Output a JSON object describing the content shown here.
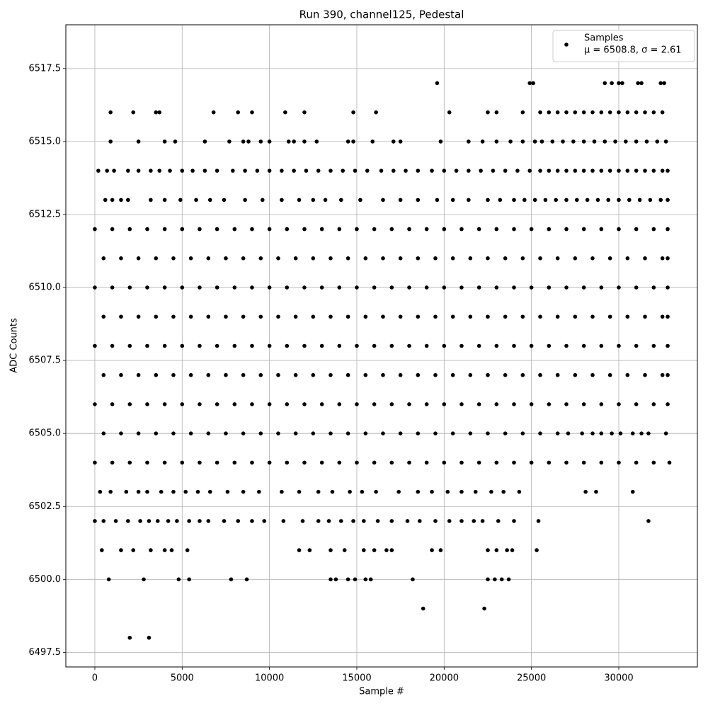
{
  "chart_data": {
    "type": "scatter",
    "title": "Run 390, channel125, Pedestal",
    "x_label": "Sample #",
    "y_label": "ADC Counts",
    "xlim": [
      -1660,
      34500
    ],
    "ylim": [
      6497.0,
      6519.0
    ],
    "xticks": [
      0,
      5000,
      10000,
      15000,
      20000,
      25000,
      30000
    ],
    "yticks": [
      6497.5,
      {
        "value": 6500.0,
        "label": "6500.0"
      },
      6502.5,
      {
        "value": 6505.0,
        "label": "6505.0"
      },
      6507.5,
      {
        "value": 6510.0,
        "label": "6510.0"
      },
      6512.5,
      {
        "value": 6515.0,
        "label": "6515.0"
      },
      6517.5
    ],
    "grid": true,
    "legend_position": "upper right",
    "legend_note": "μ = 6508.8, σ = 2.61",
    "series": [
      {
        "name": "Samples",
        "color": "#000000",
        "levels": [
          {
            "y": 6498,
            "x": [
              2000,
              3100
            ]
          },
          {
            "y": 6499,
            "x": [
              18800,
              22300
            ]
          },
          {
            "y": 6500,
            "x": [
              800,
              2800,
              4800,
              5400,
              7800,
              8700,
              13500,
              13800,
              14500,
              14900,
              15500,
              15800,
              18200,
              22500,
              22900,
              23300,
              23700
            ]
          },
          {
            "y": 6501,
            "x": [
              400,
              1500,
              2200,
              3200,
              4000,
              4400,
              5300,
              11700,
              12300,
              13500,
              14300,
              15400,
              16000,
              16700,
              17000,
              19300,
              19800,
              22500,
              23000,
              23600,
              23900,
              25300
            ]
          },
          {
            "y": 6502,
            "x": [
              0,
              500,
              1200,
              1900,
              2600,
              3100,
              3600,
              4200,
              4700,
              5400,
              6000,
              6500,
              7400,
              8200,
              9000,
              9700,
              10800,
              11900,
              12800,
              13400,
              14100,
              14800,
              15400,
              16200,
              17000,
              17900,
              18600,
              19500,
              20300,
              21000,
              21700,
              22200,
              23100,
              24000,
              25400,
              31700
            ]
          },
          {
            "y": 6503,
            "x": [
              300,
              900,
              1800,
              2500,
              3000,
              3800,
              4500,
              5200,
              5900,
              6600,
              7600,
              8500,
              9400,
              10700,
              11700,
              12800,
              13600,
              14600,
              15300,
              16100,
              17400,
              18500,
              19300,
              20200,
              21000,
              21800,
              22700,
              23400,
              24300,
              28100,
              28700,
              30800
            ]
          },
          {
            "y": 6504,
            "x": [
              0,
              1000,
              2000,
              3000,
              4000,
              5000,
              6000,
              7000,
              8000,
              9000,
              10000,
              11000,
              12000,
              13000,
              14000,
              15000,
              16000,
              17000,
              18000,
              19000,
              20000,
              21000,
              22000,
              23000,
              24000,
              25000,
              26000,
              27000,
              28000,
              29000,
              30000,
              31000,
              32000,
              32900
            ]
          },
          {
            "y": 6505,
            "x": [
              500,
              1500,
              2500,
              3500,
              4500,
              5500,
              6500,
              7500,
              8500,
              9500,
              10500,
              11500,
              12500,
              13500,
              14500,
              15500,
              16500,
              17500,
              18500,
              19500,
              20500,
              21500,
              22500,
              23500,
              24500,
              25500,
              26500,
              27100,
              27900,
              28500,
              29000,
              29600,
              30100,
              30800,
              31300,
              31700,
              32700
            ]
          },
          {
            "y": 6506,
            "x": [
              0,
              1000,
              2000,
              3000,
              4000,
              5000,
              6000,
              7000,
              8000,
              9000,
              10000,
              11000,
              12000,
              13000,
              14000,
              15000,
              16000,
              17000,
              18000,
              19000,
              20000,
              21000,
              22000,
              23000,
              24000,
              25000,
              26000,
              27000,
              28000,
              29000,
              30000,
              31000,
              32000,
              32800
            ]
          },
          {
            "y": 6507,
            "x": [
              500,
              1500,
              2500,
              3500,
              4500,
              5500,
              6500,
              7500,
              8500,
              9500,
              10500,
              11500,
              12500,
              13500,
              14500,
              15500,
              16500,
              17500,
              18500,
              19500,
              20500,
              21500,
              22500,
              23500,
              24500,
              25500,
              26500,
              27500,
              28500,
              29500,
              30500,
              31500,
              32500,
              32800
            ]
          },
          {
            "y": 6508,
            "x": [
              0,
              1000,
              2000,
              3000,
              4000,
              5000,
              6000,
              7000,
              8000,
              9000,
              10000,
              11000,
              12000,
              13000,
              14000,
              15000,
              16000,
              17000,
              18000,
              19000,
              20000,
              21000,
              22000,
              23000,
              24000,
              25000,
              26000,
              27000,
              28000,
              29000,
              30000,
              31000,
              32000,
              32800
            ]
          },
          {
            "y": 6509,
            "x": [
              500,
              1500,
              2500,
              3500,
              4500,
              5500,
              6500,
              7500,
              8500,
              9500,
              10500,
              11500,
              12500,
              13500,
              14500,
              15500,
              16500,
              17500,
              18500,
              19500,
              20500,
              21500,
              22500,
              23500,
              24500,
              25500,
              26500,
              27500,
              28500,
              29500,
              30500,
              31500,
              32500,
              32800
            ]
          },
          {
            "y": 6510,
            "x": [
              0,
              1000,
              2000,
              3000,
              4000,
              5000,
              6000,
              7000,
              8000,
              9000,
              10000,
              11000,
              12000,
              13000,
              14000,
              15000,
              16000,
              17000,
              18000,
              19000,
              20000,
              21000,
              22000,
              23000,
              24000,
              25000,
              26000,
              27000,
              28000,
              29000,
              30000,
              31000,
              32000,
              32800
            ]
          },
          {
            "y": 6511,
            "x": [
              500,
              1500,
              2500,
              3500,
              4500,
              5500,
              6500,
              7500,
              8500,
              9500,
              10500,
              11500,
              12500,
              13500,
              14500,
              15500,
              16500,
              17500,
              18500,
              19500,
              20500,
              21500,
              22500,
              23500,
              24500,
              25500,
              26500,
              27500,
              28500,
              29500,
              30500,
              31500,
              32500,
              32800
            ]
          },
          {
            "y": 6512,
            "x": [
              0,
              1000,
              2000,
              3000,
              4000,
              5000,
              6000,
              7000,
              8000,
              9000,
              10000,
              11000,
              12000,
              13000,
              14000,
              15000,
              16000,
              17000,
              18000,
              19000,
              20000,
              21000,
              22000,
              23000,
              24000,
              25000,
              26000,
              27000,
              28000,
              29000,
              30000,
              31000,
              32000,
              32800
            ]
          },
          {
            "y": 6513,
            "x": [
              600,
              1000,
              1500,
              1900,
              3200,
              4000,
              4900,
              5800,
              6600,
              7400,
              8600,
              9600,
              10700,
              11700,
              12500,
              13200,
              14100,
              15200,
              16500,
              17500,
              18500,
              19600,
              20500,
              21400,
              22500,
              23200,
              24000,
              24600,
              25200,
              25800,
              26400,
              27000,
              27600,
              28200,
              28800,
              29400,
              30000,
              30600,
              31200,
              31800,
              32400,
              32800
            ]
          },
          {
            "y": 6514,
            "x": [
              200,
              700,
              1100,
              1900,
              2500,
              3200,
              3700,
              4300,
              5000,
              5600,
              6300,
              7000,
              7900,
              8600,
              9300,
              10000,
              10700,
              11400,
              12100,
              12800,
              13500,
              14200,
              14900,
              15600,
              16400,
              17100,
              17800,
              18500,
              19300,
              20000,
              20700,
              21400,
              22100,
              22800,
              23500,
              24200,
              24900,
              25500,
              26000,
              26500,
              27000,
              27500,
              28000,
              28500,
              29000,
              29500,
              30000,
              30500,
              31000,
              31500,
              32000,
              32500,
              32800
            ]
          },
          {
            "y": 6515,
            "x": [
              900,
              2500,
              4000,
              4600,
              6300,
              7700,
              8500,
              8800,
              9500,
              10000,
              11100,
              11400,
              12000,
              12700,
              14500,
              14800,
              15900,
              17100,
              17500,
              19800,
              21400,
              22200,
              23000,
              23800,
              24500,
              25200,
              25600,
              26200,
              26800,
              27400,
              28000,
              28600,
              29200,
              29800,
              30400,
              31000,
              31600,
              32200,
              32700
            ]
          },
          {
            "y": 6516,
            "x": [
              900,
              2200,
              3500,
              3700,
              6800,
              8200,
              9000,
              10900,
              12000,
              14800,
              16100,
              20300,
              22500,
              23000,
              24500,
              25500,
              26000,
              26500,
              27000,
              27500,
              28000,
              28500,
              29000,
              29500,
              30000,
              30500,
              31000,
              31500,
              32000,
              32500
            ]
          },
          {
            "y": 6517,
            "x": [
              19600,
              24900,
              25100,
              29200,
              29600,
              30000,
              30200,
              31100,
              31300,
              32400,
              32600
            ]
          }
        ]
      }
    ]
  }
}
